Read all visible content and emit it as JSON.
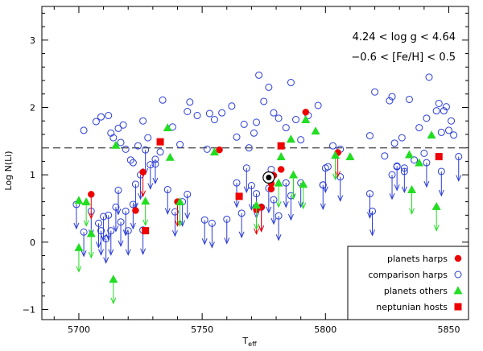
{
  "chart_data": {
    "type": "scatter",
    "title": "",
    "xlabel_main": "T",
    "xlabel_sub": "eff",
    "ylabel": "Log N(Li)",
    "xlim": [
      5685,
      5858
    ],
    "ylim": [
      -1.15,
      3.5
    ],
    "x_ticks": [
      5700,
      5750,
      5800,
      5850
    ],
    "x_tick_labels": [
      "5700",
      "5750",
      "5800",
      "5850"
    ],
    "y_ticks": [
      -1,
      0,
      1,
      2,
      3
    ],
    "y_tick_labels": [
      "−1",
      "0",
      "1",
      "2",
      "3"
    ],
    "grid": false,
    "reference_line": {
      "y": 1.4,
      "style": "dashed"
    },
    "annotations": [
      "4.24 < log g < 4.64",
      "−0.6 < [Fe/H] < 0.5"
    ],
    "legend": {
      "position": "bottom-right",
      "entries": [
        {
          "label": "planets harps",
          "marker": "filled-circle",
          "color": "#ee0000"
        },
        {
          "label": "comparison harps",
          "marker": "open-circle",
          "color": "#2a3cd6"
        },
        {
          "label": "planets others",
          "marker": "triangle",
          "color": "#22dd22"
        },
        {
          "label": "neptunian hosts",
          "marker": "square",
          "color": "#ee0000"
        }
      ]
    },
    "series": [
      {
        "name": "comparison harps",
        "color": "#2a3cd6",
        "marker": "open-circle",
        "points": [
          [
            5702,
            1.66
          ],
          [
            5707,
            1.79
          ],
          [
            5709,
            1.86
          ],
          [
            5712,
            1.88
          ],
          [
            5713,
            1.62
          ],
          [
            5714,
            1.55
          ],
          [
            5716,
            1.69
          ],
          [
            5717,
            1.48
          ],
          [
            5718,
            1.74
          ],
          [
            5719,
            1.38
          ],
          [
            5721,
            1.22
          ],
          [
            5722,
            1.18
          ],
          [
            5724,
            1.43
          ],
          [
            5726,
            1.8
          ],
          [
            5728,
            1.55
          ],
          [
            5731,
            1.16
          ],
          [
            5733,
            1.34
          ],
          [
            5734,
            2.11
          ],
          [
            5738,
            1.71
          ],
          [
            5741,
            1.45
          ],
          [
            5744,
            1.94
          ],
          [
            5745,
            2.08
          ],
          [
            5748,
            1.88
          ],
          [
            5752,
            1.38
          ],
          [
            5753,
            1.91
          ],
          [
            5755,
            1.82
          ],
          [
            5758,
            1.92
          ],
          [
            5762,
            2.02
          ],
          [
            5764,
            1.56
          ],
          [
            5767,
            1.75
          ],
          [
            5769,
            1.4
          ],
          [
            5771,
            1.62
          ],
          [
            5772,
            1.78
          ],
          [
            5773,
            2.48
          ],
          [
            5775,
            2.09
          ],
          [
            5777,
            2.3
          ],
          [
            5778,
            1.08
          ],
          [
            5779,
            1.92
          ],
          [
            5781,
            1.84
          ],
          [
            5784,
            1.7
          ],
          [
            5786,
            2.37
          ],
          [
            5788,
            1.82
          ],
          [
            5790,
            1.52
          ],
          [
            5793,
            1.88
          ],
          [
            5797,
            2.03
          ],
          [
            5799,
            0.85
          ],
          [
            5801,
            1.12
          ],
          [
            5803,
            1.43
          ],
          [
            5806,
            1.38
          ],
          [
            5818,
            1.58
          ],
          [
            5820,
            2.23
          ],
          [
            5824,
            1.28
          ],
          [
            5826,
            2.1
          ],
          [
            5827,
            2.16
          ],
          [
            5828,
            1.47
          ],
          [
            5829,
            1.12
          ],
          [
            5831,
            1.55
          ],
          [
            5832,
            1.05
          ],
          [
            5834,
            2.12
          ],
          [
            5836,
            1.22
          ],
          [
            5838,
            1.7
          ],
          [
            5840,
            1.32
          ],
          [
            5841,
            1.84
          ],
          [
            5842,
            2.45
          ],
          [
            5845,
            1.95
          ],
          [
            5846,
            2.06
          ],
          [
            5847,
            1.63
          ],
          [
            5848,
            1.95
          ],
          [
            5849,
            2.01
          ],
          [
            5850,
            1.66
          ],
          [
            5851,
            1.8
          ],
          [
            5852,
            1.59
          ]
        ]
      },
      {
        "name": "comparison harps (upper limits)",
        "color": "#2a3cd6",
        "marker": "open-circle-down-arrow",
        "points": [
          [
            5699,
            0.56
          ],
          [
            5702,
            0.15
          ],
          [
            5705,
            0.46
          ],
          [
            5708,
            0.28
          ],
          [
            5709,
            0.17
          ],
          [
            5710,
            0.38
          ],
          [
            5711,
            0.05
          ],
          [
            5712,
            0.4
          ],
          [
            5713,
            0.17
          ],
          [
            5715,
            0.52
          ],
          [
            5716,
            0.77
          ],
          [
            5717,
            0.3
          ],
          [
            5719,
            0.46
          ],
          [
            5720,
            0.17
          ],
          [
            5722,
            0.56
          ],
          [
            5723,
            0.86
          ],
          [
            5725,
            1.0
          ],
          [
            5726,
            0.18
          ],
          [
            5727,
            1.37
          ],
          [
            5729,
            1.15
          ],
          [
            5731,
            1.23
          ],
          [
            5736,
            0.78
          ],
          [
            5739,
            0.45
          ],
          [
            5742,
            0.6
          ],
          [
            5744,
            0.71
          ],
          [
            5751,
            0.33
          ],
          [
            5754,
            0.28
          ],
          [
            5760,
            0.34
          ],
          [
            5764,
            0.88
          ],
          [
            5766,
            0.43
          ],
          [
            5768,
            1.1
          ],
          [
            5770,
            0.84
          ],
          [
            5772,
            0.72
          ],
          [
            5774,
            0.52
          ],
          [
            5777,
            0.8
          ],
          [
            5779,
            0.63
          ],
          [
            5781,
            0.39
          ],
          [
            5784,
            0.88
          ],
          [
            5786,
            0.69
          ],
          [
            5790,
            0.88
          ],
          [
            5799,
            0.85
          ],
          [
            5800,
            1.1
          ],
          [
            5806,
            0.97
          ],
          [
            5818,
            0.72
          ],
          [
            5819,
            0.46
          ],
          [
            5827,
            1.0
          ],
          [
            5829,
            1.13
          ],
          [
            5832,
            1.1
          ],
          [
            5841,
            1.18
          ],
          [
            5847,
            1.05
          ],
          [
            5854,
            1.27
          ]
        ]
      },
      {
        "name": "planets harps",
        "color": "#ee0000",
        "marker": "filled-circle",
        "points": [
          [
            5723,
            0.47
          ],
          [
            5757,
            1.37
          ],
          [
            5777,
            0.96
          ],
          [
            5778,
            0.87
          ],
          [
            5778,
            0.79
          ],
          [
            5779,
            0.99
          ],
          [
            5782,
            1.08
          ],
          [
            5792,
            1.93
          ],
          [
            5805,
            1.33
          ]
        ]
      },
      {
        "name": "planets harps (upper limits)",
        "color": "#ee0000",
        "marker": "filled-circle-down-arrow",
        "points": [
          [
            5705,
            0.71
          ],
          [
            5726,
            1.04
          ],
          [
            5740,
            0.6
          ],
          [
            5772,
            0.48
          ],
          [
            5774,
            0.52
          ],
          [
            5805,
            1.33
          ]
        ]
      },
      {
        "name": "planets others",
        "color": "#22dd22",
        "marker": "triangle",
        "points": [
          [
            5700,
            0.62
          ],
          [
            5715,
            1.44
          ],
          [
            5736,
            1.7
          ],
          [
            5737,
            1.26
          ],
          [
            5755,
            1.34
          ],
          [
            5782,
            1.27
          ],
          [
            5786,
            1.53
          ],
          [
            5792,
            1.82
          ],
          [
            5796,
            1.65
          ],
          [
            5810,
            1.27
          ],
          [
            5834,
            1.3
          ],
          [
            5838,
            1.18
          ],
          [
            5843,
            1.59
          ]
        ]
      },
      {
        "name": "planets others (upper limits)",
        "color": "#22dd22",
        "marker": "triangle-down-arrow",
        "points": [
          [
            5700,
            -0.08
          ],
          [
            5703,
            0.6
          ],
          [
            5705,
            0.13
          ],
          [
            5714,
            -0.55
          ],
          [
            5727,
            0.61
          ],
          [
            5741,
            0.6
          ],
          [
            5772,
            0.55
          ],
          [
            5781,
            0.88
          ],
          [
            5787,
            1.0
          ],
          [
            5791,
            0.86
          ],
          [
            5804,
            1.29
          ],
          [
            5835,
            0.78
          ],
          [
            5845,
            0.53
          ]
        ]
      },
      {
        "name": "neptunian hosts",
        "color": "#ee0000",
        "marker": "square",
        "points": [
          [
            5727,
            0.17
          ],
          [
            5733,
            1.49
          ],
          [
            5765,
            0.68
          ],
          [
            5782,
            1.43
          ],
          [
            5846,
            1.27
          ]
        ]
      }
    ],
    "highlighted_point": {
      "x": 5777,
      "y": 0.96,
      "label": "Sun"
    }
  }
}
